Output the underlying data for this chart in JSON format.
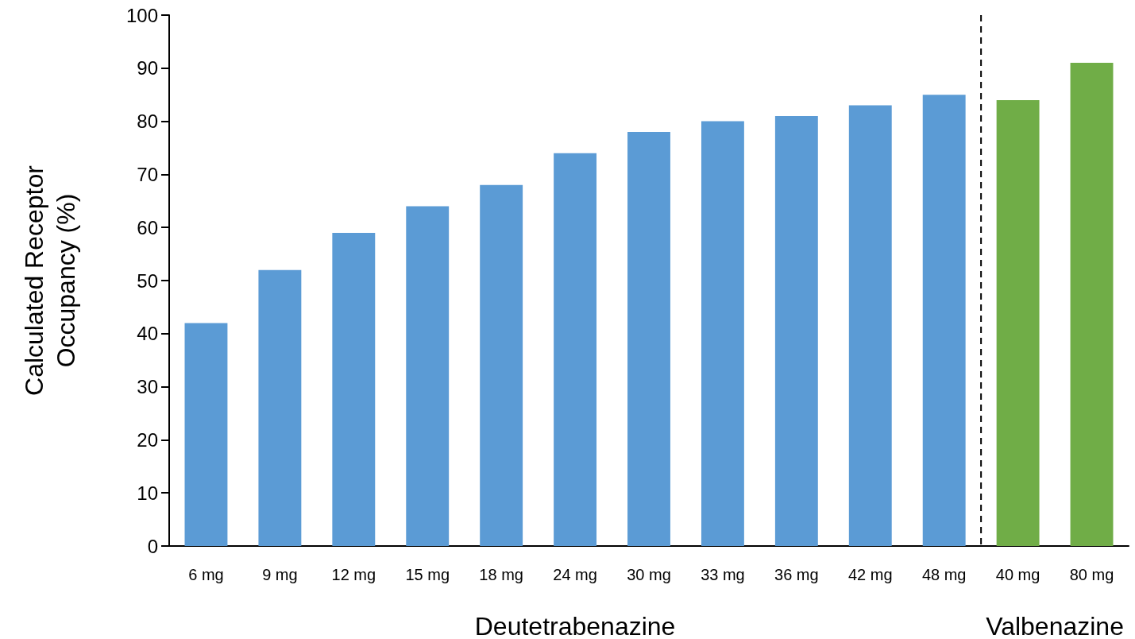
{
  "chart_data": {
    "type": "bar",
    "ylabel": "Calculated Receptor Occupancy (%)",
    "categories": [
      "6 mg",
      "9 mg",
      "12 mg",
      "15 mg",
      "18 mg",
      "24 mg",
      "30 mg",
      "33 mg",
      "36 mg",
      "42 mg",
      "48 mg",
      "40 mg",
      "80 mg"
    ],
    "values": [
      42,
      52,
      59,
      64,
      68,
      74,
      78,
      80,
      81,
      83,
      85,
      84,
      91
    ],
    "colors": [
      "#5b9bd5",
      "#5b9bd5",
      "#5b9bd5",
      "#5b9bd5",
      "#5b9bd5",
      "#5b9bd5",
      "#5b9bd5",
      "#5b9bd5",
      "#5b9bd5",
      "#5b9bd5",
      "#5b9bd5",
      "#70ad47",
      "#70ad47"
    ],
    "ylim": [
      0,
      100
    ],
    "yticks": [
      0,
      10,
      20,
      30,
      40,
      50,
      60,
      70,
      80,
      90,
      100
    ],
    "annotations": [
      "Deutetrabenazine",
      "Valbenazine"
    ]
  }
}
